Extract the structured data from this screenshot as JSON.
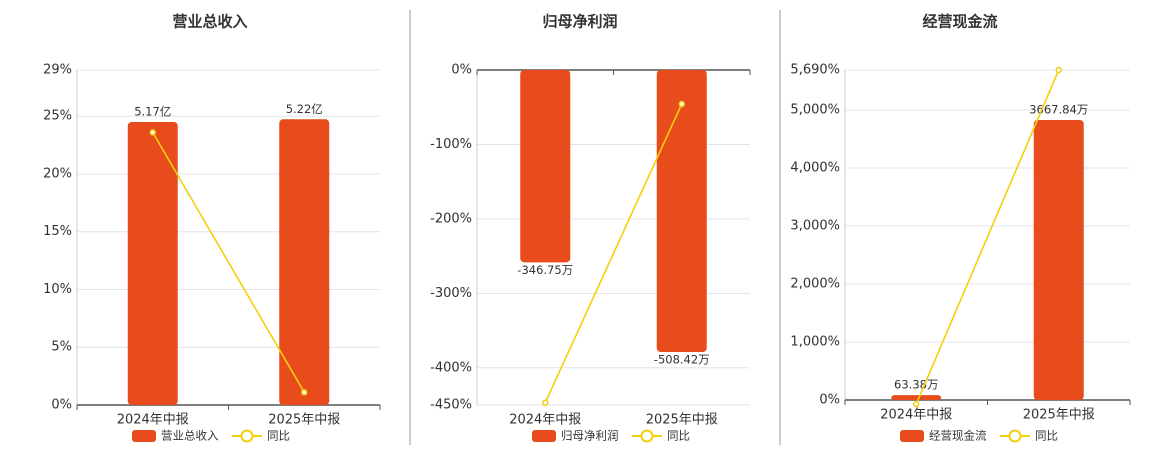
{
  "chart_data": [
    {
      "type": "bar",
      "title": "营业总收入",
      "categories": [
        "2024年中报",
        "2025年中报"
      ],
      "ylim": [
        0,
        29
      ],
      "yticks": [
        {
          "value": 0,
          "label": "0%"
        },
        {
          "value": 5,
          "label": "5%"
        },
        {
          "value": 10,
          "label": "10%"
        },
        {
          "value": 15,
          "label": "15%"
        },
        {
          "value": 20,
          "label": "20%"
        },
        {
          "value": 25,
          "label": "25%"
        },
        {
          "value": 29,
          "label": "29%"
        }
      ],
      "y2lim": [
        0,
        6.12
      ],
      "grid": true,
      "series": [
        {
          "name": "营业总收入",
          "type": "bar",
          "axis": "y2",
          "color": "#e84c1c",
          "values": [
            5.17,
            5.22
          ],
          "value_labels": [
            "5.17亿",
            "5.22亿"
          ]
        },
        {
          "name": "同比",
          "type": "line",
          "color": "#f2cf0f",
          "values": [
            23.6,
            1.1
          ]
        }
      ]
    },
    {
      "type": "bar",
      "title": "归母净利润",
      "categories": [
        "2024年中报",
        "2025年中报"
      ],
      "ylim": [
        -450,
        0
      ],
      "yticks": [
        {
          "value": 0,
          "label": "0%"
        },
        {
          "value": -100,
          "label": "-100%"
        },
        {
          "value": -200,
          "label": "-200%"
        },
        {
          "value": -300,
          "label": "-300%"
        },
        {
          "value": -400,
          "label": "-400%"
        },
        {
          "value": -450,
          "label": "-450%"
        }
      ],
      "y2lim": [
        -604,
        0
      ],
      "grid": true,
      "series": [
        {
          "name": "归母净利润",
          "type": "bar",
          "axis": "y2",
          "color": "#e84c1c",
          "values": [
            -346.75,
            -508.42
          ],
          "value_labels": [
            "-346.75万",
            "-508.42万"
          ]
        },
        {
          "name": "同比",
          "type": "line",
          "color": "#f2cf0f",
          "values": [
            -447,
            -45.7
          ]
        }
      ]
    },
    {
      "type": "bar",
      "title": "经营现金流",
      "categories": [
        "2024年中报",
        "2025年中报"
      ],
      "ylim": [
        0,
        5690
      ],
      "yticks": [
        {
          "value": 0,
          "label": "0%"
        },
        {
          "value": 1000,
          "label": "1,000%"
        },
        {
          "value": 2000,
          "label": "2,000%"
        },
        {
          "value": 3000,
          "label": "3,000%"
        },
        {
          "value": 4000,
          "label": "4,000%"
        },
        {
          "value": 5000,
          "label": "5,000%"
        },
        {
          "value": 5690,
          "label": "5,690%"
        }
      ],
      "y2lim": [
        0,
        4323
      ],
      "grid": true,
      "series": [
        {
          "name": "经营现金流",
          "type": "bar",
          "axis": "y2",
          "color": "#e84c1c",
          "values": [
            63.38,
            3667.84
          ],
          "value_labels": [
            "63.38万",
            "3667.84万"
          ]
        },
        {
          "name": "同比",
          "type": "line",
          "color": "#f2cf0f",
          "values": [
            -69,
            5690
          ]
        }
      ]
    }
  ]
}
